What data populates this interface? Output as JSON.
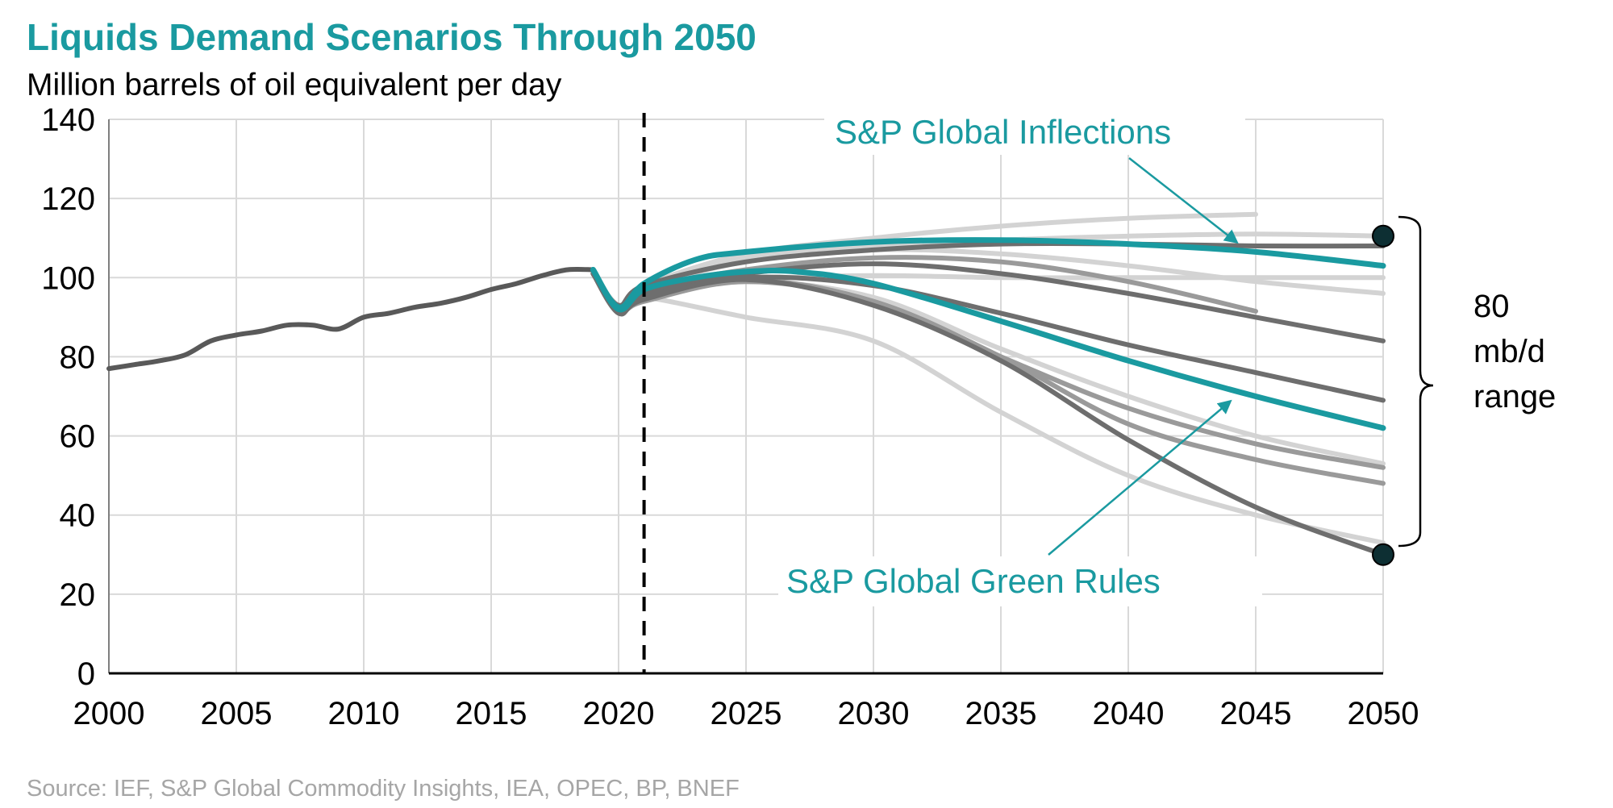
{
  "chart_data": {
    "type": "line",
    "title": "Liquids Demand Scenarios Through 2050",
    "subtitle": "Million barrels of oil equivalent per day",
    "xlim": [
      2000,
      2050
    ],
    "ylim": [
      0,
      140
    ],
    "x_ticks": [
      "2000",
      "2005",
      "2010",
      "2015",
      "2020",
      "2025",
      "2030",
      "2035",
      "2040",
      "2045",
      "2050"
    ],
    "y_ticks": [
      "0",
      "20",
      "40",
      "60",
      "80",
      "100",
      "120",
      "140"
    ],
    "grid": true,
    "vline_x": 2021.0,
    "colors": {
      "teal": "#1a9aa0",
      "historical": "#595959",
      "dark_gray": "#6e6e6e",
      "mid_gray": "#9a9a9a",
      "light_gray": "#d3d3d3",
      "grid": "#d9d9d9",
      "source": "#a6a6a6"
    },
    "historical": {
      "x": [
        2000,
        2001,
        2002,
        2003,
        2004,
        2005,
        2006,
        2007,
        2008,
        2009,
        2010,
        2011,
        2012,
        2013,
        2014,
        2015,
        2016,
        2017,
        2018,
        2019
      ],
      "y": [
        77,
        78,
        79,
        80.5,
        84,
        85.5,
        86.5,
        88,
        88,
        87,
        90,
        91,
        92.5,
        93.5,
        95,
        97,
        98.5,
        100.5,
        102,
        102
      ]
    },
    "series": [
      {
        "name": "S&P Global Inflections",
        "color_key": "teal",
        "emphasis": true,
        "x": [
          2019,
          2020,
          2021,
          2023,
          2025,
          2030,
          2035,
          2040,
          2045,
          2050
        ],
        "y": [
          102,
          92.5,
          98.5,
          104.5,
          106.5,
          109,
          109.5,
          108.5,
          106.5,
          103
        ]
      },
      {
        "name": "S&P Global Green Rules",
        "color_key": "teal",
        "emphasis": true,
        "x": [
          2019,
          2020,
          2021,
          2023,
          2025,
          2027,
          2030,
          2035,
          2040,
          2045,
          2050
        ],
        "y": [
          102,
          92,
          97,
          100,
          101.5,
          101.5,
          98.5,
          89,
          79,
          70,
          62
        ]
      },
      {
        "color_key": "light_gray",
        "x": [
          2019,
          2020,
          2021,
          2025,
          2030,
          2035,
          2040,
          2045
        ],
        "y": [
          101,
          93,
          98,
          106,
          110,
          113,
          115,
          116
        ]
      },
      {
        "color_key": "light_gray",
        "x": [
          2019,
          2020,
          2021,
          2025,
          2030,
          2035,
          2040,
          2045,
          2050
        ],
        "y": [
          101,
          93,
          98,
          105,
          108,
          109.5,
          110.5,
          111,
          110.5
        ]
      },
      {
        "color_key": "dark_gray",
        "x": [
          2019,
          2020,
          2021,
          2025,
          2030,
          2035,
          2040,
          2045,
          2050
        ],
        "y": [
          101,
          93,
          98,
          104,
          107,
          108.5,
          108.5,
          108,
          108
        ]
      },
      {
        "color_key": "light_gray",
        "x": [
          2019,
          2020,
          2021,
          2025,
          2030,
          2035,
          2040,
          2045,
          2050
        ],
        "y": [
          101,
          93,
          97.5,
          104,
          107,
          106,
          103,
          99,
          96
        ]
      },
      {
        "color_key": "mid_gray",
        "x": [
          2019,
          2020,
          2021,
          2025,
          2030,
          2035,
          2040,
          2045
        ],
        "y": [
          101,
          92.5,
          97,
          102,
          105,
          104,
          99,
          91.5
        ]
      },
      {
        "color_key": "dark_gray",
        "x": [
          2019,
          2020,
          2021,
          2025,
          2030,
          2035,
          2040,
          2045,
          2050
        ],
        "y": [
          101,
          92,
          96,
          101,
          103.5,
          101,
          96,
          90,
          84
        ]
      },
      {
        "color_key": "light_gray",
        "x": [
          2019,
          2020,
          2021,
          2025,
          2030,
          2035,
          2040,
          2045,
          2050
        ],
        "y": [
          101,
          92,
          96,
          99.5,
          100.5,
          100,
          100,
          100,
          100
        ]
      },
      {
        "color_key": "dark_gray",
        "x": [
          2019,
          2020,
          2021,
          2025,
          2030,
          2035,
          2040,
          2045,
          2050
        ],
        "y": [
          101,
          92,
          95,
          100,
          98,
          91,
          83,
          76,
          69
        ]
      },
      {
        "color_key": "light_gray",
        "x": [
          2019,
          2020,
          2021,
          2025,
          2030,
          2035,
          2040,
          2045,
          2050
        ],
        "y": [
          101,
          92,
          95,
          99,
          95,
          82,
          70,
          60,
          53
        ]
      },
      {
        "color_key": "mid_gray",
        "x": [
          2019,
          2020,
          2021,
          2025,
          2030,
          2035,
          2040,
          2045,
          2050
        ],
        "y": [
          101,
          91.5,
          94.5,
          99.5,
          94,
          80,
          67,
          58,
          52
        ]
      },
      {
        "color_key": "mid_gray",
        "x": [
          2019,
          2020,
          2021,
          2025,
          2030,
          2035,
          2040,
          2045,
          2050
        ],
        "y": [
          101,
          91.5,
          94,
          99,
          94,
          80,
          63,
          54,
          48
        ]
      },
      {
        "color_key": "dark_gray",
        "x": [
          2019,
          2020,
          2021,
          2025,
          2030,
          2035,
          2040,
          2045,
          2050
        ],
        "y": [
          101,
          91,
          94.5,
          99.5,
          93,
          79,
          59,
          42,
          30
        ]
      },
      {
        "color_key": "light_gray",
        "x": [
          2019,
          2020,
          2021,
          2025,
          2030,
          2035,
          2040,
          2045,
          2050
        ],
        "y": [
          101,
          93,
          95,
          90,
          84,
          66,
          50,
          40,
          33
        ]
      }
    ],
    "endpoints": [
      {
        "x": 2050,
        "y": 110.5
      },
      {
        "x": 2050,
        "y": 30
      }
    ],
    "annotations": {
      "inflections_label": "S&P Global Inflections",
      "green_rules_label": "S&P Global Green Rules",
      "range_label": [
        "80",
        "mb/d",
        "range"
      ]
    },
    "source": "Source: IEF, S&P Global Commodity Insights, IEA, OPEC, BP, BNEF"
  }
}
